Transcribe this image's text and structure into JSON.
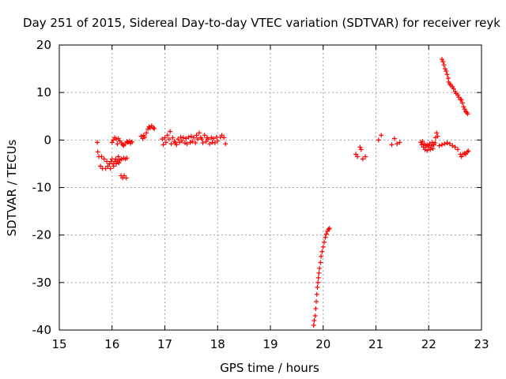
{
  "chart_data": {
    "type": "scatter",
    "title": "Day 251 of 2015, Sidereal Day-to-day VTEC variation (SDTVAR) for receiver reyk",
    "xlabel": "GPS time / hours",
    "ylabel": "SDTVAR / TECUs",
    "xlim": [
      15,
      23
    ],
    "ylim": [
      -40,
      20
    ],
    "xticks": [
      "15",
      "16",
      "17",
      "18",
      "19",
      "20",
      "21",
      "22",
      "23"
    ],
    "yticks": [
      "20",
      "10",
      "0",
      "-10",
      "-20",
      "-30",
      "-40"
    ],
    "grid": true,
    "marker": "+",
    "color": "#ff0000",
    "series": [
      {
        "name": "SDTVAR",
        "points": [
          [
            15.72,
            -0.5
          ],
          [
            15.73,
            -2.5
          ],
          [
            15.75,
            -3.5
          ],
          [
            15.78,
            -5.5
          ],
          [
            15.8,
            -3.5
          ],
          [
            15.82,
            -6
          ],
          [
            15.85,
            -4
          ],
          [
            15.88,
            -6
          ],
          [
            15.9,
            -4.5
          ],
          [
            15.92,
            -5.5
          ],
          [
            15.95,
            -5
          ],
          [
            15.97,
            -6
          ],
          [
            15.98,
            -4.5
          ],
          [
            16.0,
            -4
          ],
          [
            16.02,
            -5
          ],
          [
            16.03,
            -5.5
          ],
          [
            16.05,
            -4.5
          ],
          [
            16.07,
            -4
          ],
          [
            16.08,
            -5
          ],
          [
            16.1,
            -4.5
          ],
          [
            16.12,
            -3.5
          ],
          [
            16.13,
            -4.8
          ],
          [
            16.15,
            -4.2
          ],
          [
            16.17,
            -7.5
          ],
          [
            16.18,
            -4
          ],
          [
            16.2,
            -8
          ],
          [
            16.22,
            -3.8
          ],
          [
            16.23,
            -7.5
          ],
          [
            16.25,
            -4
          ],
          [
            16.27,
            -8
          ],
          [
            16.28,
            -3.8
          ],
          [
            16.0,
            -0.5
          ],
          [
            16.02,
            0
          ],
          [
            16.05,
            0.5
          ],
          [
            16.08,
            0.2
          ],
          [
            16.1,
            -0.8
          ],
          [
            16.12,
            0.3
          ],
          [
            16.15,
            -0.2
          ],
          [
            16.18,
            -0.6
          ],
          [
            16.2,
            -1
          ],
          [
            16.22,
            -1.2
          ],
          [
            16.25,
            -0.8
          ],
          [
            16.28,
            -0.3
          ],
          [
            16.3,
            -0.5
          ],
          [
            16.33,
            -0.2
          ],
          [
            16.35,
            -0.7
          ],
          [
            16.38,
            -0.4
          ],
          [
            16.55,
            0.8
          ],
          [
            16.58,
            0.3
          ],
          [
            16.6,
            1
          ],
          [
            16.62,
            0.6
          ],
          [
            16.65,
            1.5
          ],
          [
            16.68,
            2.3
          ],
          [
            16.7,
            2.8
          ],
          [
            16.72,
            2.5
          ],
          [
            16.75,
            3
          ],
          [
            16.78,
            2.6
          ],
          [
            16.8,
            2.4
          ],
          [
            16.95,
            0.2
          ],
          [
            16.97,
            -1
          ],
          [
            17.0,
            0.5
          ],
          [
            17.02,
            -0.5
          ],
          [
            17.05,
            1
          ],
          [
            17.08,
            0.2
          ],
          [
            17.1,
            1.8
          ],
          [
            17.12,
            -0.8
          ],
          [
            17.15,
            0.5
          ],
          [
            17.18,
            -0.3
          ],
          [
            17.2,
            -0.6
          ],
          [
            17.22,
            -1
          ],
          [
            17.25,
            0.2
          ],
          [
            17.28,
            -0.5
          ],
          [
            17.3,
            0.6
          ],
          [
            17.32,
            -0.2
          ],
          [
            17.35,
            0.5
          ],
          [
            17.38,
            -0.6
          ],
          [
            17.4,
            0.3
          ],
          [
            17.42,
            -0.8
          ],
          [
            17.45,
            0.6
          ],
          [
            17.48,
            -0.5
          ],
          [
            17.5,
            0.8
          ],
          [
            17.52,
            -0.3
          ],
          [
            17.55,
            0.5
          ],
          [
            17.58,
            -0.6
          ],
          [
            17.6,
            1
          ],
          [
            17.62,
            0.2
          ],
          [
            17.65,
            1.5
          ],
          [
            17.68,
            0.5
          ],
          [
            17.7,
            0.2
          ],
          [
            17.72,
            -0.6
          ],
          [
            17.75,
            1
          ],
          [
            17.78,
            -0.3
          ],
          [
            17.8,
            0.5
          ],
          [
            17.82,
            0.2
          ],
          [
            17.85,
            -0.8
          ],
          [
            17.88,
            0.5
          ],
          [
            17.9,
            -0.5
          ],
          [
            17.92,
            0.3
          ],
          [
            17.95,
            -0.6
          ],
          [
            17.98,
            0.6
          ],
          [
            18.0,
            -0.2
          ],
          [
            18.05,
            0.6
          ],
          [
            18.08,
            1
          ],
          [
            18.12,
            0.5
          ],
          [
            18.15,
            -0.8
          ],
          [
            19.82,
            -39
          ],
          [
            19.83,
            -38
          ],
          [
            19.85,
            -37
          ],
          [
            19.86,
            -35.5
          ],
          [
            19.87,
            -34
          ],
          [
            19.88,
            -32.5
          ],
          [
            19.89,
            -31
          ],
          [
            19.9,
            -30
          ],
          [
            19.91,
            -29
          ],
          [
            19.92,
            -28
          ],
          [
            19.93,
            -27
          ],
          [
            19.95,
            -25.8
          ],
          [
            19.96,
            -24.5
          ],
          [
            19.98,
            -23.5
          ],
          [
            20.0,
            -22.5
          ],
          [
            20.02,
            -21.5
          ],
          [
            20.04,
            -20.5
          ],
          [
            20.06,
            -19.8
          ],
          [
            20.08,
            -19.2
          ],
          [
            20.1,
            -18.8
          ],
          [
            20.12,
            -18.6
          ],
          [
            20.62,
            -3
          ],
          [
            20.65,
            -3.5
          ],
          [
            20.7,
            -1.5
          ],
          [
            20.72,
            -2
          ],
          [
            20.75,
            -4
          ],
          [
            20.8,
            -3.5
          ],
          [
            21.05,
            0
          ],
          [
            21.1,
            1
          ],
          [
            21.3,
            -1
          ],
          [
            21.35,
            0.3
          ],
          [
            21.4,
            -0.8
          ],
          [
            21.45,
            -0.5
          ],
          [
            21.85,
            -0.5
          ],
          [
            21.87,
            -1
          ],
          [
            21.88,
            -0.3
          ],
          [
            21.9,
            -1.5
          ],
          [
            21.92,
            -0.8
          ],
          [
            21.93,
            -2
          ],
          [
            21.95,
            -1.2
          ],
          [
            21.97,
            -2.2
          ],
          [
            21.98,
            -1
          ],
          [
            22.0,
            -1.5
          ],
          [
            22.02,
            -0.8
          ],
          [
            22.03,
            -2
          ],
          [
            22.05,
            -1.2
          ],
          [
            22.07,
            -0.5
          ],
          [
            22.08,
            -1.8
          ],
          [
            22.1,
            -1
          ],
          [
            22.12,
            -0.6
          ],
          [
            22.13,
            0.5
          ],
          [
            22.15,
            1.5
          ],
          [
            22.17,
            0.8
          ],
          [
            22.2,
            -1.2
          ],
          [
            22.25,
            -1
          ],
          [
            22.3,
            -0.8
          ],
          [
            22.35,
            -0.6
          ],
          [
            22.4,
            -0.8
          ],
          [
            22.45,
            -1.2
          ],
          [
            22.5,
            -1.5
          ],
          [
            22.55,
            -2
          ],
          [
            22.6,
            -3
          ],
          [
            22.62,
            -3.5
          ],
          [
            22.65,
            -3
          ],
          [
            22.68,
            -2.8
          ],
          [
            22.7,
            -3
          ],
          [
            22.73,
            -2.5
          ],
          [
            22.75,
            -2.3
          ],
          [
            22.25,
            17
          ],
          [
            22.27,
            16.5
          ],
          [
            22.29,
            15.8
          ],
          [
            22.31,
            15
          ],
          [
            22.33,
            14.5
          ],
          [
            22.35,
            13.8
          ],
          [
            22.37,
            13
          ],
          [
            22.38,
            12.2
          ],
          [
            22.4,
            11.8
          ],
          [
            22.42,
            11.5
          ],
          [
            22.45,
            11.2
          ],
          [
            22.47,
            10.8
          ],
          [
            22.5,
            10.2
          ],
          [
            22.52,
            9.8
          ],
          [
            22.55,
            9.5
          ],
          [
            22.57,
            9
          ],
          [
            22.6,
            8.5
          ],
          [
            22.62,
            8.5
          ],
          [
            22.64,
            7.8
          ],
          [
            22.66,
            7
          ],
          [
            22.68,
            6.5
          ],
          [
            22.7,
            6
          ],
          [
            22.72,
            5.8
          ],
          [
            22.74,
            5.5
          ]
        ]
      }
    ]
  }
}
